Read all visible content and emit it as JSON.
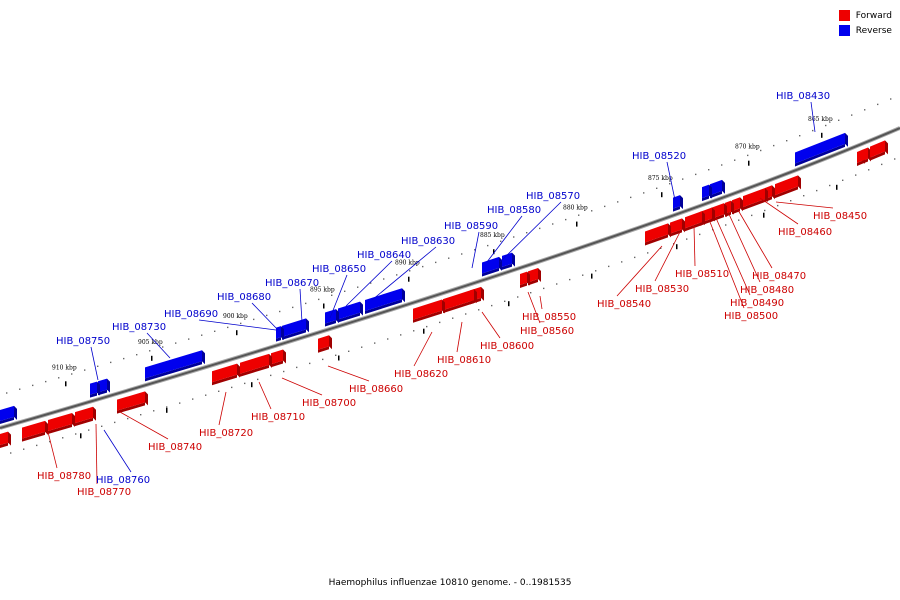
{
  "legend": [
    {
      "label": "Forward",
      "color": "#ee0000"
    },
    {
      "label": "Reverse",
      "color": "#0000ee"
    }
  ],
  "caption": "Haemophilus influenzae 10810 genome. - 0..1981535",
  "colors": {
    "forward": "#ee0000",
    "reverse": "#0000ee",
    "forward_label": "#cc0000",
    "reverse_label": "#0000cc",
    "axis": "#555555"
  },
  "scale_labels": [
    "865 kbp",
    "870 kbp",
    "875 kbp",
    "880 kbp",
    "885 kbp",
    "890 kbp",
    "895 kbp",
    "900 kbp",
    "905 kbp",
    "910 kbp"
  ],
  "genes": {
    "reverse": [
      "HIB_08430",
      "HIB_08520",
      "HIB_08570",
      "HIB_08580",
      "HIB_08590",
      "HIB_08630",
      "HIB_08640",
      "HIB_08650",
      "HIB_08670",
      "HIB_08680",
      "HIB_08690",
      "HIB_08730",
      "HIB_08750",
      "HIB_08760"
    ],
    "forward": [
      "HIB_08450",
      "HIB_08460",
      "HIB_08470",
      "HIB_08480",
      "HIB_08490",
      "HIB_08500",
      "HIB_08510",
      "HIB_08530",
      "HIB_08540",
      "HIB_08550",
      "HIB_08560",
      "HIB_08600",
      "HIB_08610",
      "HIB_08620",
      "HIB_08660",
      "HIB_08700",
      "HIB_08710",
      "HIB_08720",
      "HIB_08740",
      "HIB_08770",
      "HIB_08780"
    ]
  }
}
